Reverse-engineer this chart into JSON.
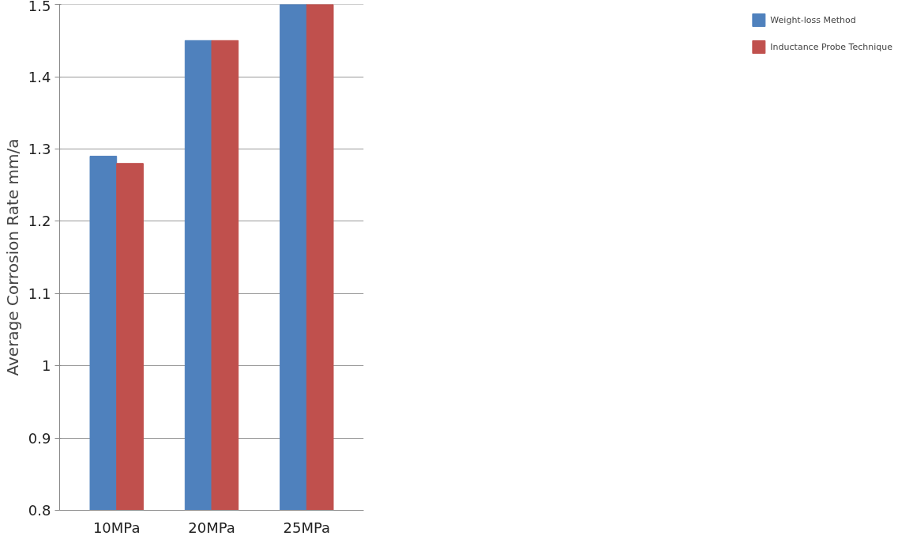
{
  "chart_data": {
    "type": "bar",
    "ylabel": "Average Corrosion Rate mm/a",
    "categories": [
      "10MPa",
      "20MPa",
      "25MPa"
    ],
    "series": [
      {
        "name": "Weight-loss Method",
        "color": "#4f81bd",
        "values": [
          1.29,
          1.45,
          1.5
        ]
      },
      {
        "name": "Inductance Probe Technique",
        "color": "#c0504d",
        "values": [
          1.28,
          1.45,
          1.5
        ]
      }
    ],
    "ylim": [
      0.8,
      1.5
    ],
    "yticks": [
      0.8,
      0.9,
      1,
      1.1,
      1.2,
      1.3,
      1.4,
      1.5
    ],
    "grid": "y",
    "legend": "right"
  }
}
